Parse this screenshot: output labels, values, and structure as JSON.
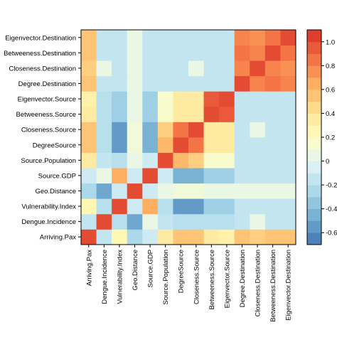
{
  "chart_data": {
    "type": "heatmap",
    "variables": [
      "Arriving.Pax",
      "Dengue.Incidence",
      "Vulnerability.Index",
      "Geo.Distance",
      "Source.GDP",
      "Source.Population",
      "DegreeSource",
      "Closeness.Source",
      "Betweeness.Source",
      "Eigenvector.Source",
      "Degree.Destination",
      "Closeness.Destination",
      "Betweeness.Destination",
      "Eigenvector.Destination"
    ],
    "row_labels_bottom_to_top": [
      "Arriving.Pax",
      "Dengue.Incidence",
      "Vulnerability.Index",
      "Geo.Distance",
      "Source.GDP",
      "Source.Population",
      "DegreeSource",
      "Closeness.Source",
      "Betweeness.Source",
      "Eigenvector.Source",
      "Degree.Destination",
      "Closeness.Destination",
      "Betweeness.Destination",
      "Eigenvector.Destination"
    ],
    "matrix": [
      [
        1.0,
        -0.15,
        0.25,
        -0.25,
        -0.1,
        0.35,
        0.55,
        0.55,
        0.35,
        0.3,
        0.55,
        0.5,
        0.55,
        0.55
      ],
      [
        -0.15,
        1.0,
        -0.2,
        -0.5,
        0.05,
        -0.15,
        -0.2,
        -0.2,
        -0.2,
        -0.2,
        -0.15,
        0.05,
        -0.15,
        -0.15
      ],
      [
        0.25,
        -0.2,
        1.0,
        -0.1,
        0.65,
        -0.2,
        -0.55,
        -0.55,
        -0.3,
        -0.3,
        -0.15,
        -0.15,
        -0.15,
        -0.15
      ],
      [
        -0.25,
        -0.5,
        -0.1,
        1.0,
        -0.1,
        0.05,
        0.1,
        0.1,
        0.05,
        0.05,
        0.05,
        0.05,
        0.05,
        0.05
      ],
      [
        -0.1,
        0.05,
        0.65,
        -0.1,
        1.0,
        -0.1,
        -0.45,
        -0.45,
        -0.3,
        -0.3,
        -0.15,
        -0.15,
        -0.15,
        -0.15
      ],
      [
        0.35,
        -0.15,
        -0.2,
        0.05,
        -0.1,
        1.0,
        0.6,
        0.5,
        0.15,
        0.15,
        -0.15,
        -0.15,
        -0.15,
        -0.15
      ],
      [
        0.55,
        -0.2,
        -0.55,
        0.1,
        -0.45,
        0.6,
        1.0,
        0.85,
        0.35,
        0.35,
        -0.15,
        -0.15,
        -0.15,
        -0.15
      ],
      [
        0.55,
        -0.2,
        -0.55,
        0.1,
        -0.45,
        0.5,
        0.85,
        1.0,
        0.35,
        0.35,
        -0.15,
        0.05,
        -0.15,
        -0.15
      ],
      [
        0.35,
        -0.2,
        -0.3,
        0.05,
        -0.3,
        0.15,
        0.35,
        0.35,
        1.0,
        0.95,
        -0.15,
        -0.15,
        -0.15,
        -0.15
      ],
      [
        0.3,
        -0.2,
        -0.3,
        0.05,
        -0.3,
        0.15,
        0.35,
        0.35,
        0.95,
        1.0,
        -0.15,
        -0.15,
        -0.15,
        -0.15
      ],
      [
        0.55,
        -0.15,
        -0.15,
        0.05,
        -0.15,
        -0.15,
        -0.15,
        -0.15,
        -0.15,
        -0.15,
        1.0,
        0.8,
        0.85,
        0.8
      ],
      [
        0.5,
        0.05,
        -0.15,
        0.05,
        -0.15,
        -0.15,
        -0.15,
        0.05,
        -0.15,
        -0.15,
        0.8,
        1.0,
        0.8,
        0.75
      ],
      [
        0.55,
        -0.15,
        -0.15,
        0.05,
        -0.15,
        -0.15,
        -0.15,
        -0.15,
        -0.15,
        -0.15,
        0.85,
        0.8,
        1.0,
        0.85
      ],
      [
        0.55,
        -0.15,
        -0.15,
        0.05,
        -0.15,
        -0.15,
        -0.15,
        -0.15,
        -0.15,
        -0.15,
        0.8,
        0.75,
        0.85,
        1.0
      ]
    ],
    "color_range": [
      -0.7,
      1.1
    ],
    "colorbar_ticks": [
      "-0.6",
      "-0.4",
      "-0.2",
      "0",
      "0.2",
      "0.4",
      "0.6",
      "0.8",
      "1.0"
    ],
    "colorbar_tick_values": [
      -0.6,
      -0.4,
      -0.2,
      0.0,
      0.2,
      0.4,
      0.6,
      0.8,
      1.0
    ],
    "colorbar_bins": 18,
    "palette": [
      "#4575b4",
      "#74add1",
      "#abd9e9",
      "#e0f3f8",
      "#ffffbf",
      "#fee090",
      "#fdae61",
      "#f46d43",
      "#d73027"
    ],
    "title": "",
    "xlabel": "",
    "ylabel": ""
  }
}
